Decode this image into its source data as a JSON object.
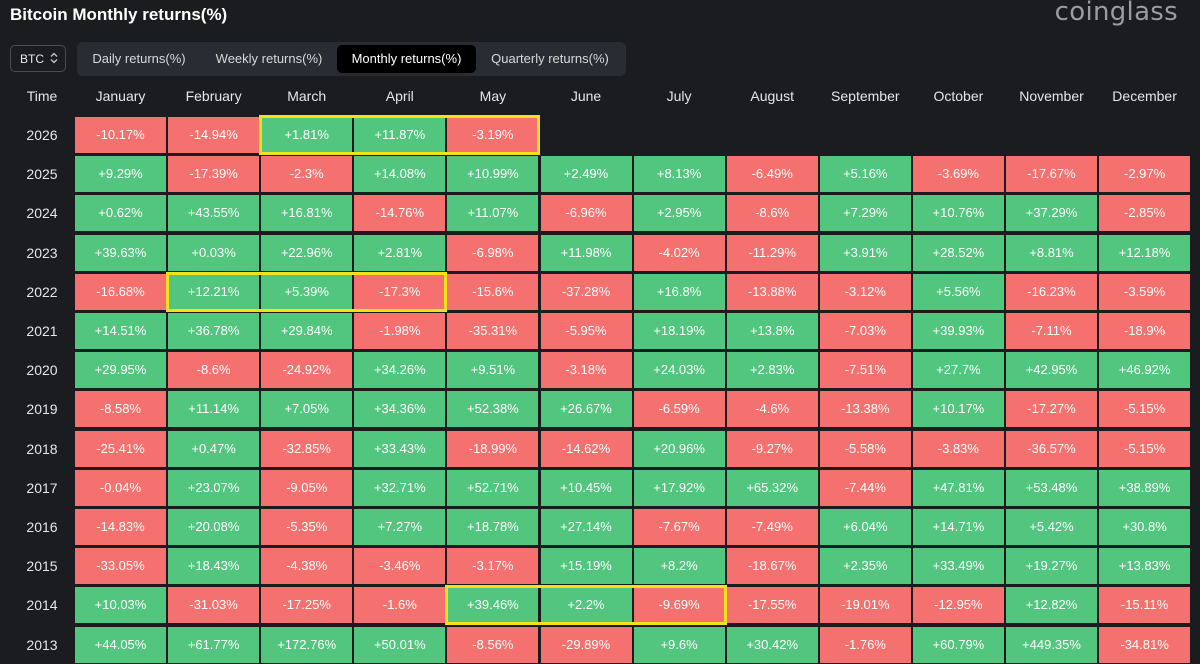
{
  "title": "Bitcoin Monthly returns(%)",
  "brand": "coinglass",
  "asset_selector": {
    "value": "BTC",
    "icon": "chevron-updown-icon"
  },
  "tabs": [
    {
      "label": "Daily returns(%)",
      "active": false
    },
    {
      "label": "Weekly returns(%)",
      "active": false
    },
    {
      "label": "Monthly returns(%)",
      "active": true
    },
    {
      "label": "Quarterly returns(%)",
      "active": false
    }
  ],
  "colors": {
    "positive": "#52c57e",
    "negative": "#f4716f",
    "highlight": "#f3e21a",
    "background": "#1b1c20"
  },
  "chart_data": {
    "type": "table",
    "title": "Bitcoin Monthly returns(%)",
    "row_header": "Time",
    "columns": [
      "January",
      "February",
      "March",
      "April",
      "May",
      "June",
      "July",
      "August",
      "September",
      "October",
      "November",
      "December"
    ],
    "rows": [
      {
        "year": "2026",
        "values": [
          "-10.17%",
          "-14.94%",
          "+1.81%",
          "+11.87%",
          "-3.19%",
          "",
          "",
          "",
          "",
          "",
          "",
          ""
        ]
      },
      {
        "year": "2025",
        "values": [
          "+9.29%",
          "-17.39%",
          "-2.3%",
          "+14.08%",
          "+10.99%",
          "+2.49%",
          "+8.13%",
          "-6.49%",
          "+5.16%",
          "-3.69%",
          "-17.67%",
          "-2.97%"
        ]
      },
      {
        "year": "2024",
        "values": [
          "+0.62%",
          "+43.55%",
          "+16.81%",
          "-14.76%",
          "+11.07%",
          "-6.96%",
          "+2.95%",
          "-8.6%",
          "+7.29%",
          "+10.76%",
          "+37.29%",
          "-2.85%"
        ]
      },
      {
        "year": "2023",
        "values": [
          "+39.63%",
          "+0.03%",
          "+22.96%",
          "+2.81%",
          "-6.98%",
          "+11.98%",
          "-4.02%",
          "-11.29%",
          "+3.91%",
          "+28.52%",
          "+8.81%",
          "+12.18%"
        ]
      },
      {
        "year": "2022",
        "values": [
          "-16.68%",
          "+12.21%",
          "+5.39%",
          "-17.3%",
          "-15.6%",
          "-37.28%",
          "+16.8%",
          "-13.88%",
          "-3.12%",
          "+5.56%",
          "-16.23%",
          "-3.59%"
        ]
      },
      {
        "year": "2021",
        "values": [
          "+14.51%",
          "+36.78%",
          "+29.84%",
          "-1.98%",
          "-35.31%",
          "-5.95%",
          "+18.19%",
          "+13.8%",
          "-7.03%",
          "+39.93%",
          "-7.11%",
          "-18.9%"
        ]
      },
      {
        "year": "2020",
        "values": [
          "+29.95%",
          "-8.6%",
          "-24.92%",
          "+34.26%",
          "+9.51%",
          "-3.18%",
          "+24.03%",
          "+2.83%",
          "-7.51%",
          "+27.7%",
          "+42.95%",
          "+46.92%"
        ]
      },
      {
        "year": "2019",
        "values": [
          "-8.58%",
          "+11.14%",
          "+7.05%",
          "+34.36%",
          "+52.38%",
          "+26.67%",
          "-6.59%",
          "-4.6%",
          "-13.38%",
          "+10.17%",
          "-17.27%",
          "-5.15%"
        ]
      },
      {
        "year": "2018",
        "values": [
          "-25.41%",
          "+0.47%",
          "-32.85%",
          "+33.43%",
          "-18.99%",
          "-14.62%",
          "+20.96%",
          "-9.27%",
          "-5.58%",
          "-3.83%",
          "-36.57%",
          "-5.15%"
        ]
      },
      {
        "year": "2017",
        "values": [
          "-0.04%",
          "+23.07%",
          "-9.05%",
          "+32.71%",
          "+52.71%",
          "+10.45%",
          "+17.92%",
          "+65.32%",
          "-7.44%",
          "+47.81%",
          "+53.48%",
          "+38.89%"
        ]
      },
      {
        "year": "2016",
        "values": [
          "-14.83%",
          "+20.08%",
          "-5.35%",
          "+7.27%",
          "+18.78%",
          "+27.14%",
          "-7.67%",
          "-7.49%",
          "+6.04%",
          "+14.71%",
          "+5.42%",
          "+30.8%"
        ]
      },
      {
        "year": "2015",
        "values": [
          "-33.05%",
          "+18.43%",
          "-4.38%",
          "-3.46%",
          "-3.17%",
          "+15.19%",
          "+8.2%",
          "-18.67%",
          "+2.35%",
          "+33.49%",
          "+19.27%",
          "+13.83%"
        ]
      },
      {
        "year": "2014",
        "values": [
          "+10.03%",
          "-31.03%",
          "-17.25%",
          "-1.6%",
          "+39.46%",
          "+2.2%",
          "-9.69%",
          "-17.55%",
          "-19.01%",
          "-12.95%",
          "+12.82%",
          "-15.11%"
        ]
      },
      {
        "year": "2013",
        "values": [
          "+44.05%",
          "+61.77%",
          "+172.76%",
          "+50.01%",
          "-8.56%",
          "-29.89%",
          "+9.6%",
          "+30.42%",
          "-1.76%",
          "+60.79%",
          "+449.35%",
          "-34.81%"
        ]
      }
    ],
    "highlights": [
      {
        "year": "2026",
        "from": "March",
        "to": "May"
      },
      {
        "year": "2022",
        "from": "February",
        "to": "April"
      },
      {
        "year": "2014",
        "from": "May",
        "to": "July"
      }
    ]
  }
}
